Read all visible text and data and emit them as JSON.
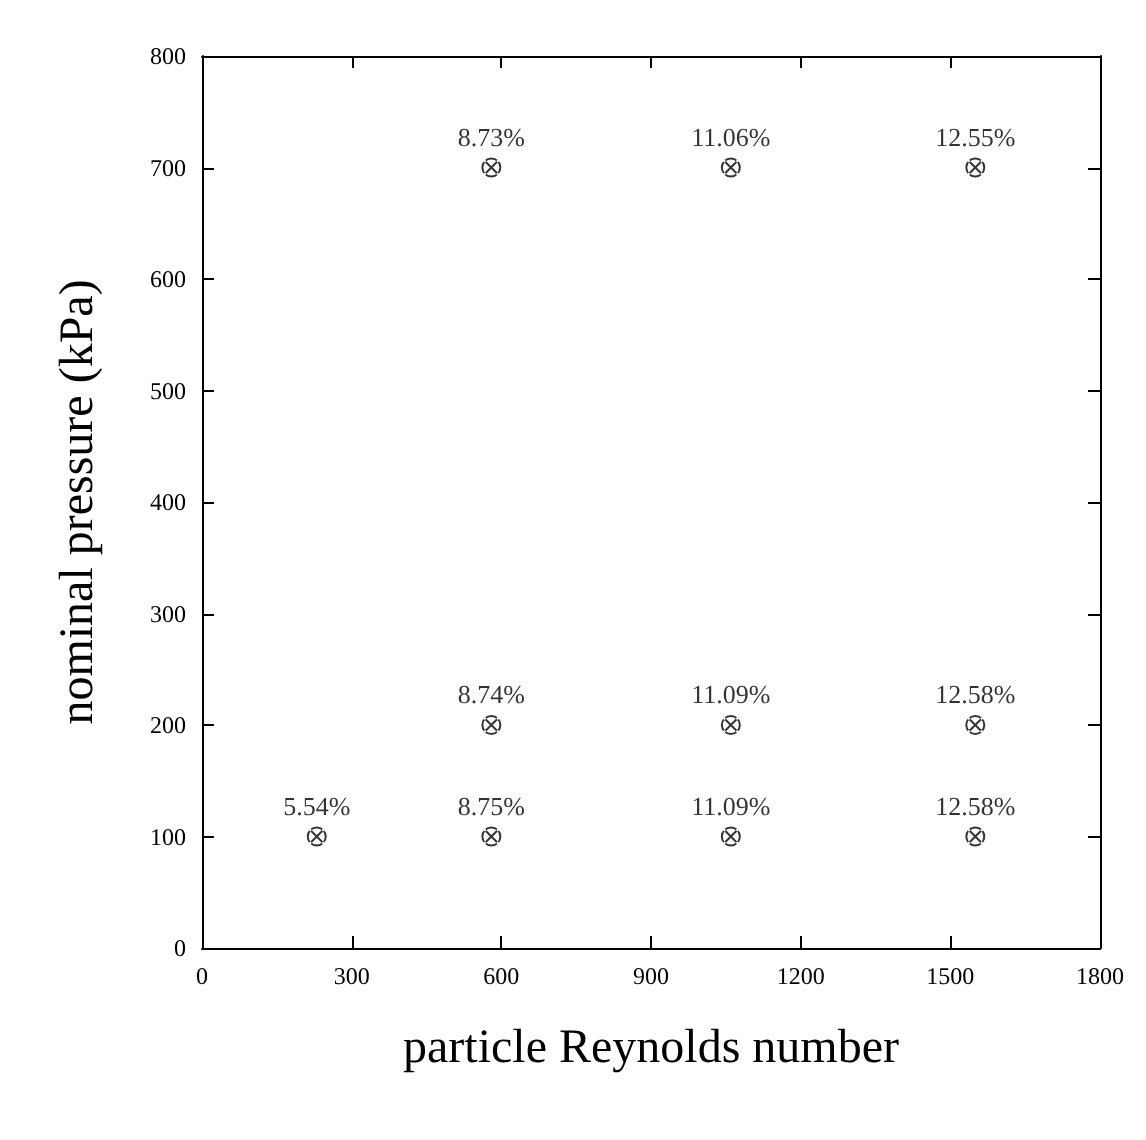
{
  "chart_data": {
    "type": "scatter",
    "xlabel": "particle Reynolds number",
    "ylabel": "nominal pressure (kPa)",
    "x": [
      230,
      580,
      1060,
      1550,
      580,
      1060,
      1550,
      580,
      1060,
      1550
    ],
    "values": [
      100,
      100,
      100,
      100,
      200,
      200,
      200,
      700,
      700,
      700
    ],
    "annotations": [
      {
        "text": "5.54%",
        "x": 230,
        "y": 100
      },
      {
        "text": "8.75%",
        "x": 580,
        "y": 100
      },
      {
        "text": "11.09%",
        "x": 1060,
        "y": 100
      },
      {
        "text": "12.58%",
        "x": 1550,
        "y": 100
      },
      {
        "text": "8.74%",
        "x": 580,
        "y": 200
      },
      {
        "text": "11.09%",
        "x": 1060,
        "y": 200
      },
      {
        "text": "12.58%",
        "x": 1550,
        "y": 200
      },
      {
        "text": "8.73%",
        "x": 580,
        "y": 700
      },
      {
        "text": "11.06%",
        "x": 1060,
        "y": 700
      },
      {
        "text": "12.55%",
        "x": 1550,
        "y": 700
      }
    ],
    "color": "#000000",
    "marker": "circle",
    "xlim": [
      0,
      1800
    ],
    "xticks": [
      0,
      300,
      600,
      900,
      1200,
      1500,
      1800
    ],
    "ylim": [
      0,
      800
    ],
    "yticks": [
      0,
      100,
      200,
      300,
      400,
      500,
      600,
      700,
      800
    ],
    "grid": false
  }
}
